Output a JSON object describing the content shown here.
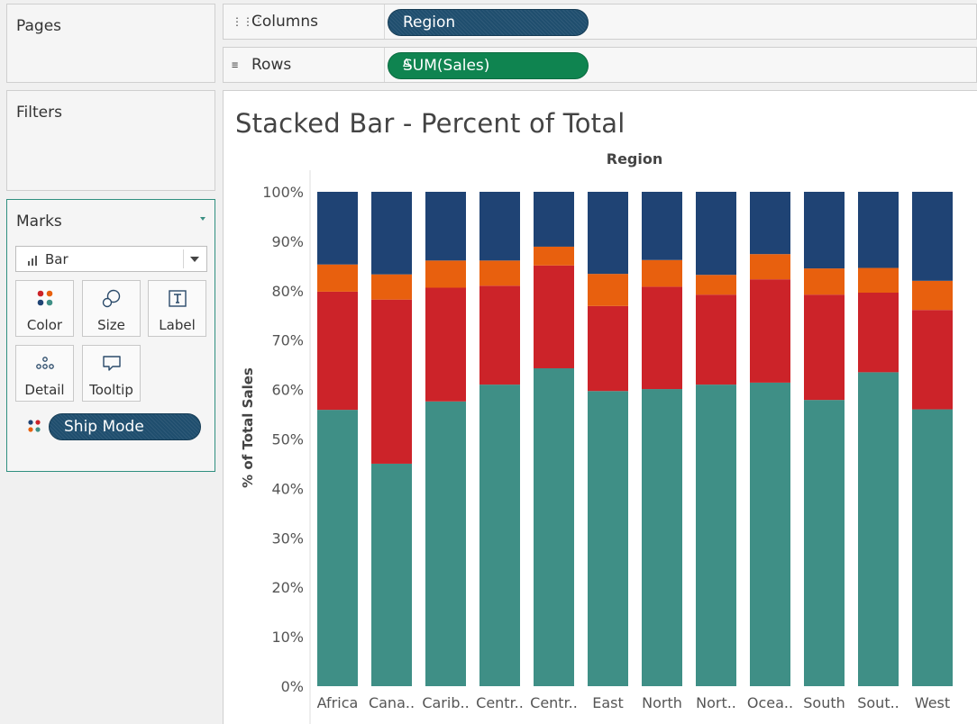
{
  "left_panel": {
    "pages_title": "Pages",
    "filters_title": "Filters",
    "marks": {
      "title": "Marks",
      "mark_type": "Bar",
      "buttons": {
        "color": "Color",
        "size": "Size",
        "label": "Label",
        "detail": "Detail",
        "tooltip": "Tooltip"
      },
      "color_field_pill": "Ship Mode"
    }
  },
  "shelves": {
    "columns": {
      "label": "Columns",
      "pill": "Region"
    },
    "rows": {
      "label": "Rows",
      "pill": "SUM(Sales)",
      "pill_icon": "delta-icon"
    }
  },
  "colors": {
    "pill_dimension": "#1f4e6e",
    "pill_measure": "#0f8450",
    "marks_border": "#2f8f7f"
  },
  "chart_data": {
    "type": "bar",
    "stacked": true,
    "title": "Stacked Bar - Percent of Total",
    "column_header": "Region",
    "xlabel": "",
    "ylabel": "% of Total Sales",
    "ylim": [
      0,
      100
    ],
    "yticks": [
      "0%",
      "10%",
      "20%",
      "30%",
      "40%",
      "50%",
      "60%",
      "70%",
      "80%",
      "90%",
      "100%"
    ],
    "grid": false,
    "categories": [
      "Africa",
      "Cana..",
      "Carib..",
      "Centr..",
      "Centr..",
      "East",
      "North",
      "Nort..",
      "Ocea..",
      "South",
      "Sout..",
      "West"
    ],
    "series": [
      {
        "color": "#3f8f86",
        "values": [
          55.9,
          45.0,
          57.6,
          61.0,
          64.3,
          59.7,
          60.1,
          61.0,
          61.4,
          57.9,
          63.5,
          56.0
        ]
      },
      {
        "color": "#cc2329",
        "values": [
          23.9,
          33.2,
          23.0,
          20.0,
          20.8,
          17.2,
          20.7,
          18.2,
          20.9,
          21.3,
          16.1,
          20.1
        ]
      },
      {
        "color": "#e8600e",
        "values": [
          5.5,
          5.1,
          5.5,
          5.1,
          3.8,
          6.5,
          5.4,
          4.0,
          5.1,
          5.3,
          5.0,
          5.9
        ]
      },
      {
        "color": "#1f4374",
        "values": [
          14.7,
          16.7,
          13.9,
          13.9,
          11.1,
          16.6,
          13.8,
          16.8,
          12.6,
          15.5,
          15.4,
          18.0
        ]
      }
    ]
  }
}
